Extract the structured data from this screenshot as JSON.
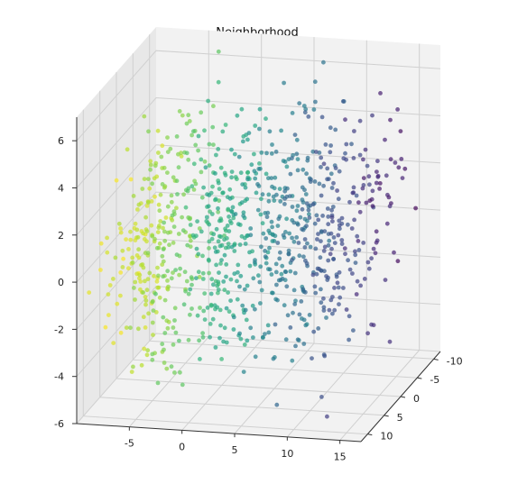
{
  "chart_data": {
    "type": "scatter",
    "projection": "3d",
    "title": "Neighborhood",
    "xlabel": "",
    "ylabel": "",
    "zlabel": "",
    "xlim": [
      -10,
      17
    ],
    "ylim": [
      -12,
      12
    ],
    "zlim": [
      -6,
      7
    ],
    "x_ticks": [
      "-5",
      "0",
      "5",
      "10",
      "15"
    ],
    "y_ticks": [
      "-10",
      "-5",
      "0",
      "5",
      "10"
    ],
    "z_ticks": [
      "-6",
      "-4",
      "-2",
      "0",
      "2",
      "4",
      "6"
    ],
    "grid": true,
    "colormap": "viridis",
    "color_variable": "x",
    "point_count_approx": 1000,
    "clusters": [
      {
        "x": 0.5,
        "y": 0,
        "z": 0.5,
        "sx": 1.2,
        "sy": 5.0,
        "sz": 2.6,
        "n": 210
      },
      {
        "x": 5.5,
        "y": 0,
        "z": 0.3,
        "sx": 1.3,
        "sy": 5.0,
        "sz": 2.6,
        "n": 200
      },
      {
        "x": 10.0,
        "y": -1,
        "z": 0.3,
        "sx": 1.4,
        "sy": 5.0,
        "sz": 2.5,
        "n": 180
      },
      {
        "x": -4.5,
        "y": 0,
        "z": 0.2,
        "sx": 1.5,
        "sy": 5.0,
        "sz": 2.8,
        "n": 200
      },
      {
        "x": -8.0,
        "y": 0,
        "z": -0.5,
        "sx": 1.0,
        "sy": 5.0,
        "sz": 2.0,
        "n": 110
      },
      {
        "x": 14.0,
        "y": -2,
        "z": 1.5,
        "sx": 1.5,
        "sy": 4.0,
        "sz": 2.2,
        "n": 60
      }
    ],
    "colors": {
      "pane": "#f2f2f2",
      "pane_side": "#e8e8e8",
      "grid": "#d0d0d0",
      "axis_line": "#333333",
      "text": "#222222"
    }
  }
}
